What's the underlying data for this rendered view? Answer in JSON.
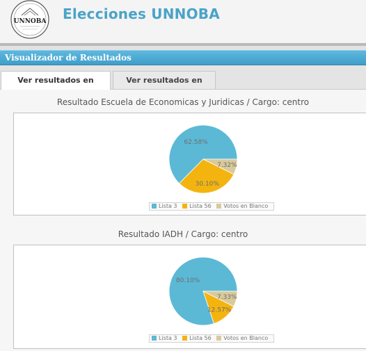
{
  "header": {
    "site_title": "Elecciones UNNOBA",
    "logo_text": "UNNOBA"
  },
  "panel": {
    "title": "Visualizador de Resultados"
  },
  "tabs": [
    {
      "label": "Ver resultados en gráficos",
      "active": true
    },
    {
      "label": "Ver resultados en tablas",
      "active": false
    }
  ],
  "colors": {
    "accent": "#4aa3c8",
    "lista3": "#5bb9d6",
    "lista56": "#f4b410",
    "blanco": "#d9c99b"
  },
  "legend": [
    "Lista 3",
    "Lista 56",
    "Votos en Blanco"
  ],
  "chart_data": [
    {
      "type": "pie",
      "title": "Resultado Escuela de Economicas y Juridicas / Cargo: centro",
      "categories": [
        "Lista 3",
        "Lista 56",
        "Votos en Blanco"
      ],
      "values": [
        62.58,
        30.1,
        7.32
      ],
      "labels": [
        "62.58%",
        "30.10%",
        "7.32%"
      ],
      "legend_position": "bottom-center"
    },
    {
      "type": "pie",
      "title": "Resultado IADH / Cargo: centro",
      "categories": [
        "Lista 3",
        "Lista 56",
        "Votos en Blanco"
      ],
      "values": [
        80.1,
        12.57,
        7.33
      ],
      "labels": [
        "80.10%",
        "12.57%",
        "7.33%"
      ],
      "legend_position": "bottom-center"
    }
  ]
}
